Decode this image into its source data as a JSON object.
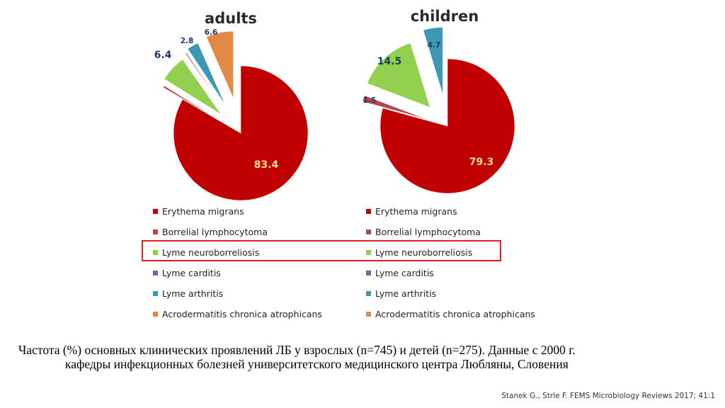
{
  "chart_data": [
    {
      "type": "pie",
      "title": "adults",
      "categories": [
        "Erythema migrans",
        "Borrelial lymphocytoma",
        "Lyme neuroborreliosis",
        "Lyme carditis",
        "Lyme arthritis",
        "Acrodermatitis chronica atrophicans"
      ],
      "values": [
        83.4,
        0.5,
        6.4,
        0.3,
        2.8,
        6.6
      ],
      "data_labels": [
        "83.4",
        "",
        "6.4",
        "",
        "2.8",
        "6.6"
      ],
      "colors": [
        "#c00000",
        "#b5474b",
        "#92d050",
        "#7f5f9f",
        "#3c98b5",
        "#e08a45"
      ],
      "legend": "below"
    },
    {
      "type": "pie",
      "title": "children",
      "categories": [
        "Erythema migrans",
        "Borrelial lymphocytoma",
        "Lyme neuroborreliosis",
        "Lyme carditis",
        "Lyme arthritis",
        "Acrodermatitis chronica atrophicans"
      ],
      "values": [
        79.3,
        1.5,
        14.5,
        0.0,
        4.7,
        0.0
      ],
      "data_labels": [
        "79.3",
        "1.5",
        "14.5",
        "",
        "4.7",
        ""
      ],
      "colors": [
        "#c00000",
        "#b5474b",
        "#92d050",
        "#7f5f9f",
        "#3c98b5",
        "#e08a45"
      ],
      "legend": "below"
    }
  ],
  "legend_items": [
    {
      "label": "Erythema migrans",
      "color": "#c00000"
    },
    {
      "label": "Borrelial lymphocytoma",
      "color": "#b5474b"
    },
    {
      "label": "Lyme neuroborreliosis",
      "color": "#92d050"
    },
    {
      "label": "Lyme carditis",
      "color": "#7f5f9f"
    },
    {
      "label": "Lyme arthritis",
      "color": "#3c98b5"
    },
    {
      "label": "Acrodermatitis chronica atrophicans",
      "color": "#e08a45"
    }
  ],
  "highlighted_item": "Lyme neuroborreliosis",
  "highlight_color": "#e51c23",
  "caption": {
    "line1": "Частота (%) основных клинических проявлений ЛБ у взрослых (n=745) и детей (n=275). Данные с 2000 г.",
    "line2": "кафедры инфекционных болезней университетского медицинского центра Любляны, Словения"
  },
  "source": "Stanek G., Strle F. FEMS Microbiology Reviews 2017; 41:1"
}
